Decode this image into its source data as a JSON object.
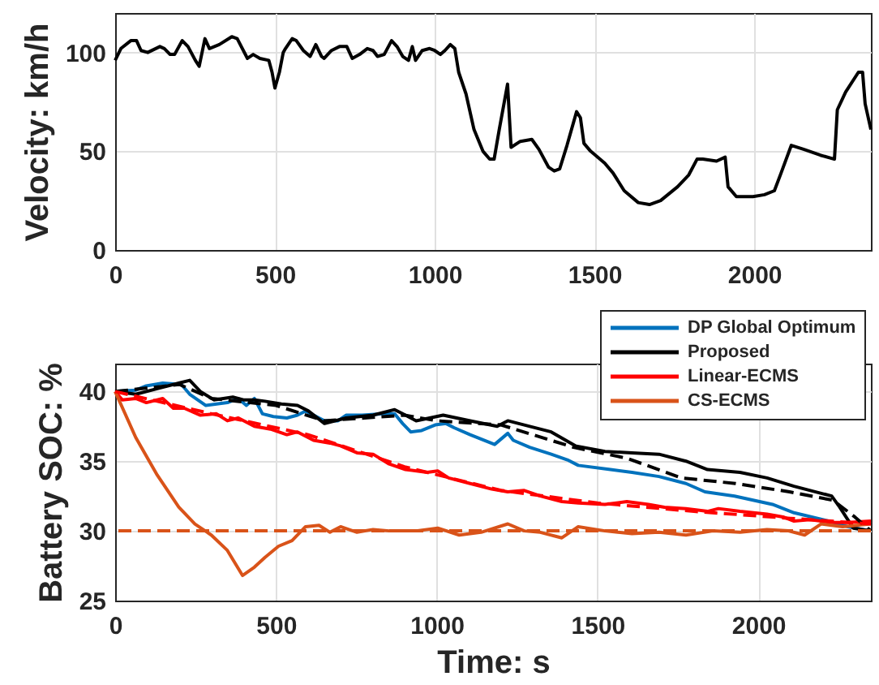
{
  "chart_data": [
    {
      "type": "line",
      "ylabel": "Velocity: km/h",
      "grid": true,
      "xlim": [
        0,
        2365
      ],
      "xticks": [
        0,
        500,
        1000,
        1500,
        2000
      ],
      "ylim": [
        0,
        120
      ],
      "yticks": [
        0,
        50,
        100
      ],
      "line_style": "solid",
      "series": [
        {
          "color": "#000000",
          "x": [
            0,
            18,
            49,
            67,
            81,
            102,
            140,
            154,
            172,
            186,
            210,
            228,
            251,
            263,
            281,
            295,
            326,
            365,
            382,
            414,
            432,
            453,
            481,
            491,
            500,
            514,
            526,
            533,
            554,
            567,
            589,
            610,
            628,
            646,
            654,
            677,
            702,
            725,
            742,
            765,
            789,
            807,
            821,
            842,
            865,
            882,
            900,
            918,
            930,
            940,
            961,
            984,
            1000,
            1018,
            1032,
            1049,
            1063,
            1075,
            1098,
            1123,
            1151,
            1172,
            1186,
            1202,
            1228,
            1239,
            1268,
            1304,
            1326,
            1356,
            1374,
            1391,
            1414,
            1444,
            1456,
            1467,
            1488,
            1532,
            1558,
            1593,
            1637,
            1672,
            1707,
            1760,
            1795,
            1821,
            1839,
            1882,
            1909,
            1918,
            1944,
            1996,
            2032,
            2063,
            2084,
            2116,
            2154,
            2207,
            2251,
            2260,
            2286,
            2326,
            2339,
            2347,
            2365
          ],
          "values": [
            96,
            102,
            106,
            106,
            101,
            100,
            103,
            102,
            99,
            99,
            106,
            103,
            96,
            93,
            107,
            102,
            104,
            108,
            107,
            97,
            99,
            97,
            96,
            90,
            82,
            90,
            100,
            102,
            107,
            106,
            101,
            98,
            104,
            98,
            97,
            101,
            103,
            103,
            97,
            99,
            102,
            101,
            98,
            99,
            106,
            103,
            98,
            96,
            103,
            96,
            101,
            102,
            101,
            99,
            101,
            104,
            102,
            90,
            79,
            61,
            50,
            46,
            46,
            61,
            84,
            52,
            55,
            56,
            51,
            42,
            40,
            41,
            53,
            70,
            67,
            54,
            50,
            44,
            39,
            30,
            24,
            23,
            25,
            32,
            38,
            46,
            46,
            45,
            47,
            32,
            27,
            27,
            28,
            30,
            39,
            53,
            51,
            48,
            46,
            71,
            80,
            90,
            90,
            74,
            61
          ]
        }
      ]
    },
    {
      "type": "line",
      "xlabel": "Time: s",
      "ylabel": "Battery SOC: %",
      "grid": true,
      "legend": "top right",
      "xlim": [
        0,
        2350
      ],
      "xticks": [
        0,
        500,
        1000,
        1500,
        2000
      ],
      "ylim": [
        25,
        42
      ],
      "yticks": [
        25,
        30,
        35,
        40
      ],
      "line_style": "solid",
      "ref_lines": [
        {
          "axis": "y",
          "value": 30,
          "color": "#d95319",
          "line_style": "dashed"
        }
      ],
      "series": [
        {
          "name": "DP Global Optimum",
          "color": "#0072bd",
          "x": [
            0,
            64,
            97,
            148,
            206,
            232,
            282,
            349,
            383,
            408,
            433,
            458,
            492,
            534,
            567,
            592,
            617,
            651,
            693,
            718,
            768,
            836,
            869,
            894,
            919,
            953,
            995,
            1029,
            1054,
            1104,
            1180,
            1221,
            1238,
            1289,
            1356,
            1406,
            1440,
            1540,
            1607,
            1691,
            1775,
            1834,
            1926,
            2044,
            2111,
            2220,
            2279,
            2350
          ],
          "values": [
            40,
            40.1,
            40.4,
            40.6,
            40.5,
            39.8,
            39.0,
            39.2,
            39.5,
            39.0,
            39.5,
            38.4,
            38.2,
            38.1,
            38.3,
            38.6,
            38.3,
            37.9,
            37.9,
            38.3,
            38.3,
            38.4,
            38.4,
            37.7,
            37.1,
            37.2,
            37.6,
            37.7,
            37.4,
            36.9,
            36.2,
            37.0,
            36.5,
            36.0,
            35.5,
            35.1,
            34.7,
            34.4,
            34.2,
            33.9,
            33.4,
            32.8,
            32.5,
            31.9,
            31.3,
            30.7,
            30.3,
            30.0
          ]
        },
        {
          "name": "Proposed",
          "color": "#000000",
          "x": [
            0,
            64,
            131,
            198,
            232,
            265,
            307,
            366,
            399,
            433,
            466,
            517,
            567,
            601,
            651,
            718,
            802,
            869,
            894,
            936,
            1020,
            1104,
            1188,
            1221,
            1255,
            1356,
            1431,
            1523,
            1607,
            1691,
            1775,
            1842,
            1943,
            2027,
            2111,
            2228,
            2253,
            2295,
            2350
          ],
          "values": [
            40,
            39.8,
            40.2,
            40.6,
            40.8,
            40.0,
            39.4,
            39.6,
            39.4,
            39.4,
            39.3,
            39.1,
            39.0,
            38.6,
            37.7,
            38.1,
            38.3,
            38.7,
            38.4,
            37.9,
            38.3,
            37.9,
            37.5,
            37.9,
            37.7,
            37.1,
            36.1,
            35.7,
            35.6,
            35.5,
            35.0,
            34.4,
            34.2,
            33.8,
            33.2,
            32.5,
            31.7,
            30.2,
            30.0
          ]
        },
        {
          "name": "Linear-ECMS",
          "color": "#ff0000",
          "x": [
            0,
            22,
            64,
            97,
            148,
            181,
            215,
            265,
            315,
            349,
            383,
            433,
            483,
            534,
            567,
            617,
            668,
            701,
            752,
            802,
            852,
            903,
            970,
            1003,
            1037,
            1104,
            1171,
            1221,
            1272,
            1322,
            1389,
            1440,
            1523,
            1591,
            1658,
            1708,
            1775,
            1842,
            1876,
            1943,
            2027,
            2077,
            2111,
            2161,
            2228,
            2279,
            2350
          ],
          "values": [
            40,
            39.4,
            39.5,
            39.2,
            39.5,
            38.8,
            38.8,
            38.3,
            38.4,
            37.9,
            38.1,
            37.5,
            37.3,
            36.9,
            37.1,
            36.5,
            36.3,
            36.1,
            35.6,
            35.5,
            34.8,
            34.4,
            34.2,
            34.3,
            33.8,
            33.4,
            33.0,
            32.8,
            32.9,
            32.5,
            32.1,
            32.0,
            31.9,
            32.1,
            31.9,
            31.7,
            31.6,
            31.4,
            31.6,
            31.4,
            31.2,
            31.0,
            30.7,
            30.8,
            30.6,
            30.6,
            30.7
          ]
        },
        {
          "name": "CS-ECMS",
          "color": "#d95319",
          "x": [
            0,
            64,
            131,
            198,
            248,
            299,
            349,
            396,
            433,
            466,
            508,
            550,
            592,
            634,
            668,
            701,
            752,
            802,
            852,
            936,
            1003,
            1070,
            1138,
            1221,
            1272,
            1322,
            1389,
            1440,
            1523,
            1607,
            1691,
            1775,
            1859,
            1943,
            2027,
            2094,
            2144,
            2195,
            2262,
            2350
          ],
          "values": [
            40,
            36.7,
            34.0,
            31.7,
            30.5,
            29.7,
            28.6,
            26.8,
            27.4,
            28.1,
            28.9,
            29.3,
            30.3,
            30.4,
            29.9,
            30.3,
            29.9,
            30.1,
            30.0,
            30.0,
            30.2,
            29.7,
            29.9,
            30.5,
            30.0,
            29.9,
            29.5,
            30.3,
            30.0,
            29.8,
            29.9,
            29.7,
            30.0,
            29.9,
            30.1,
            30.0,
            29.7,
            30.5,
            30.3,
            30.5
          ]
        },
        {
          "color": "#000000",
          "line_style": "dashed",
          "x": [
            0,
            200,
            300,
            500,
            650,
            900,
            1000,
            1200,
            1425,
            1593,
            1761,
            1929,
            2097,
            2232,
            2300,
            2350
          ],
          "values": [
            40,
            40.5,
            39.5,
            39.0,
            37.9,
            38.3,
            37.9,
            37.6,
            36.0,
            35.2,
            33.8,
            33.4,
            32.8,
            32.2,
            31.0,
            30.0
          ]
        },
        {
          "color": "#ff0000",
          "line_style": "dashed",
          "x": [
            0,
            300,
            600,
            900,
            1200,
            1500,
            1800,
            2100,
            2350
          ],
          "values": [
            40,
            38.4,
            36.9,
            34.6,
            32.9,
            32.0,
            31.4,
            30.9,
            30.5
          ]
        }
      ]
    }
  ]
}
